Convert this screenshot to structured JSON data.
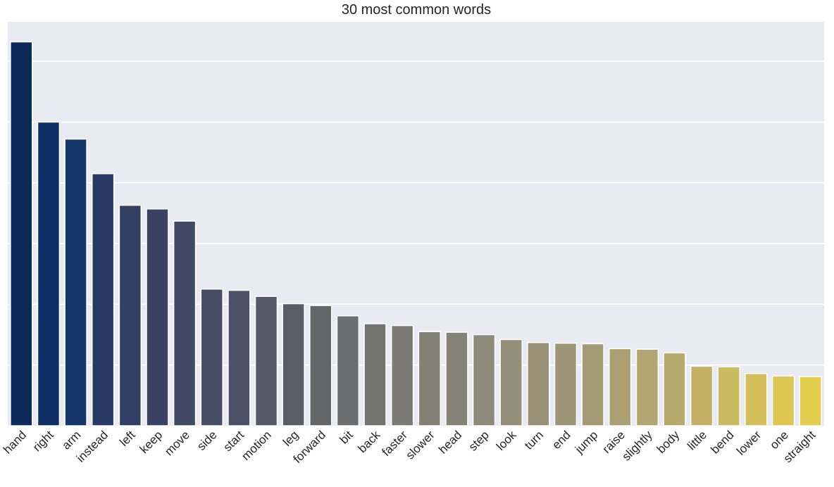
{
  "chart_data": {
    "type": "bar",
    "title": "30 most common words",
    "xlabel": "",
    "ylabel": "",
    "grid": true,
    "categories": [
      "hand",
      "right",
      "arm",
      "instead",
      "left",
      "keep",
      "move",
      "side",
      "start",
      "motion",
      "leg",
      "forward",
      "bit",
      "back",
      "faster",
      "slower",
      "head",
      "step",
      "look",
      "turn",
      "end",
      "jump",
      "raise",
      "slightly",
      "body",
      "little",
      "bend",
      "lower",
      "one",
      "straight"
    ],
    "values": [
      632,
      500,
      472,
      415,
      363,
      357,
      337,
      225,
      223,
      213,
      201,
      198,
      181,
      168,
      165,
      155,
      154,
      150,
      142,
      137,
      136,
      135,
      127,
      126,
      120,
      98,
      97,
      86,
      82,
      81
    ],
    "ylim": [
      0,
      665
    ],
    "colors": [
      "#0b2a57",
      "#0e2f63",
      "#153668",
      "#283a64",
      "#333f63",
      "#394262",
      "#414a64",
      "#484d66",
      "#4c5168",
      "#555967",
      "#5b5d66",
      "#646668",
      "#6c6d6e",
      "#727271",
      "#7c7a74",
      "#838176",
      "#858276",
      "#8c8a79",
      "#938e78",
      "#999177",
      "#9d9676",
      "#a49b75",
      "#ad9f74",
      "#b3a571",
      "#b8aa6c",
      "#c3af66",
      "#caba62",
      "#d4be5a",
      "#dcc654",
      "#e2cd4d"
    ]
  }
}
